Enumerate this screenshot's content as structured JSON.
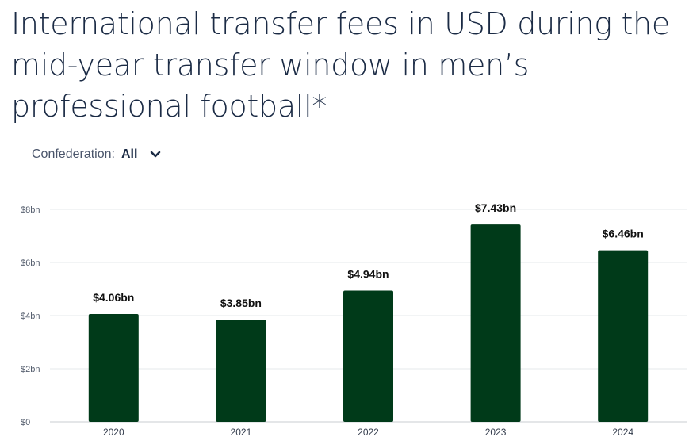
{
  "header": {
    "title": "International transfer fees in USD during the mid-year transfer window in men’s professional football*"
  },
  "filter": {
    "label": "Confederation:",
    "value": "All",
    "icon": "chevron-down-icon"
  },
  "colors": {
    "bar": "#003a19",
    "grid": "#e6e8eb",
    "title": "#1b2b45"
  },
  "chart_data": {
    "type": "bar",
    "categories": [
      "2020",
      "2021",
      "2022",
      "2023",
      "2024"
    ],
    "values": [
      4.06,
      3.85,
      4.94,
      7.43,
      6.46
    ],
    "value_labels": [
      "$4.06bn",
      "$3.85bn",
      "$4.94bn",
      "$7.43bn",
      "$6.46bn"
    ],
    "ylim": [
      0,
      8
    ],
    "yticks": [
      0,
      2,
      4,
      6,
      8
    ],
    "ytick_labels": [
      "$0",
      "$2bn",
      "$4bn",
      "$6bn",
      "$8bn"
    ],
    "grid": true,
    "legend": "none"
  }
}
